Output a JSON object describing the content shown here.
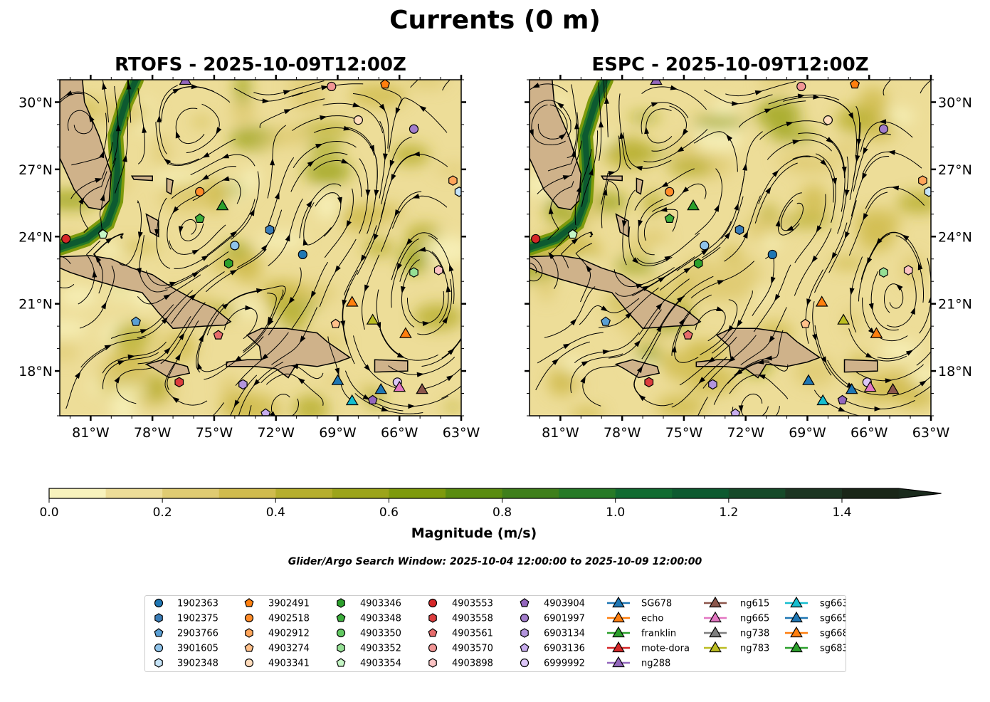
{
  "title": "Currents (0 m)",
  "panels": [
    {
      "title": "RTOFS - 2025-10-09T12:00Z",
      "lat_axis_side": "left"
    },
    {
      "title": "ESPC - 2025-10-09T12:00Z",
      "lat_axis_side": "right"
    }
  ],
  "axes": {
    "lon_range": [
      -82.5,
      -63
    ],
    "lat_range": [
      16,
      31
    ],
    "lon_ticks": [
      {
        "value": -81,
        "label": "81°W"
      },
      {
        "value": -78,
        "label": "78°W"
      },
      {
        "value": -75,
        "label": "75°W"
      },
      {
        "value": -72,
        "label": "72°W"
      },
      {
        "value": -69,
        "label": "69°W"
      },
      {
        "value": -66,
        "label": "66°W"
      },
      {
        "value": -63,
        "label": "63°W"
      }
    ],
    "lat_ticks": [
      {
        "value": 18,
        "label": "18°N"
      },
      {
        "value": 21,
        "label": "21°N"
      },
      {
        "value": 24,
        "label": "24°N"
      },
      {
        "value": 27,
        "label": "27°N"
      },
      {
        "value": 30,
        "label": "30°N"
      }
    ]
  },
  "colorbar": {
    "label": "Magnitude (m/s)",
    "min": 0,
    "max": 1.5,
    "extend": "max",
    "colors": [
      "#f8f3bd",
      "#eddd98",
      "#dfcb72",
      "#d0bb4e",
      "#b6ae2d",
      "#9ca41a",
      "#7e9a0c",
      "#5a8c10",
      "#3f7f1b",
      "#277a27",
      "#116b31",
      "#0d5a30",
      "#164a29",
      "#1c3522",
      "#1a2618"
    ],
    "extend_color": "#1a2a1c",
    "ticks": [
      {
        "value": 0.0,
        "label": "0.0"
      },
      {
        "value": 0.2,
        "label": "0.2"
      },
      {
        "value": 0.4,
        "label": "0.4"
      },
      {
        "value": 0.6,
        "label": "0.6"
      },
      {
        "value": 0.8,
        "label": "0.8"
      },
      {
        "value": 1.0,
        "label": "1.0"
      },
      {
        "value": 1.2,
        "label": "1.2"
      },
      {
        "value": 1.4,
        "label": "1.4"
      }
    ]
  },
  "search_window": "Glider/Argo Search Window: 2025-10-04 12:00:00 to 2025-10-09 12:00:00",
  "land_color": "#cfb28a",
  "platforms": [
    {
      "label": "1902363",
      "shape": "circle",
      "color": "#1f77b4",
      "lon": -70.7,
      "lat": 23.2
    },
    {
      "label": "1902375",
      "shape": "hexagon",
      "color": "#3a7db8",
      "lon": -72.3,
      "lat": 24.3
    },
    {
      "label": "2903766",
      "shape": "pentagon",
      "color": "#5a9fd4",
      "lon": -78.8,
      "lat": 20.2
    },
    {
      "label": "3901605",
      "shape": "circle",
      "color": "#8fc3ea",
      "lon": -74.0,
      "lat": 23.6
    },
    {
      "label": "3902348",
      "shape": "hexagon",
      "color": "#c6e4f8",
      "lon": -63.1,
      "lat": 26.0
    },
    {
      "label": "3902491",
      "shape": "pentagon",
      "color": "#ff7f0e",
      "lon": -66.7,
      "lat": 30.8
    },
    {
      "label": "4902518",
      "shape": "circle",
      "color": "#ff8c2a",
      "lon": -75.7,
      "lat": 26.0
    },
    {
      "label": "4902912",
      "shape": "hexagon",
      "color": "#ffa55a",
      "lon": -63.4,
      "lat": 26.5
    },
    {
      "label": "4903274",
      "shape": "pentagon",
      "color": "#ffc08a",
      "lon": -69.1,
      "lat": 20.1
    },
    {
      "label": "4903341",
      "shape": "circle",
      "color": "#ffdcbc",
      "lon": -68.0,
      "lat": 29.2
    },
    {
      "label": "4903346",
      "shape": "hexagon",
      "color": "#2ca02c",
      "lon": -74.3,
      "lat": 22.8
    },
    {
      "label": "4903348",
      "shape": "pentagon",
      "color": "#3cae3c",
      "lon": -75.7,
      "lat": 24.8
    },
    {
      "label": "4903350",
      "shape": "circle",
      "color": "#62c962",
      "lon": null,
      "lat": null
    },
    {
      "label": "4903352",
      "shape": "hexagon",
      "color": "#95e095",
      "lon": -65.3,
      "lat": 22.4
    },
    {
      "label": "4903354",
      "shape": "pentagon",
      "color": "#c5f5c5",
      "lon": -80.4,
      "lat": 24.1
    },
    {
      "label": "4903553",
      "shape": "circle",
      "color": "#d62728",
      "lon": -82.2,
      "lat": 23.9
    },
    {
      "label": "4903558",
      "shape": "hexagon",
      "color": "#dc3d3e",
      "lon": -76.7,
      "lat": 17.5
    },
    {
      "label": "4903561",
      "shape": "pentagon",
      "color": "#e66b6b",
      "lon": -74.8,
      "lat": 19.6
    },
    {
      "label": "4903570",
      "shape": "circle",
      "color": "#f19595",
      "lon": -69.3,
      "lat": 30.7
    },
    {
      "label": "4903898",
      "shape": "hexagon",
      "color": "#fbc3c3",
      "lon": -64.1,
      "lat": 22.5
    },
    {
      "label": "4903904",
      "shape": "pentagon",
      "color": "#9467bd",
      "lon": -67.3,
      "lat": 16.7
    },
    {
      "label": "6901997",
      "shape": "circle",
      "color": "#a27dcb",
      "lon": -65.3,
      "lat": 28.8
    },
    {
      "label": "6903134",
      "shape": "hexagon",
      "color": "#b294dc",
      "lon": -73.6,
      "lat": 17.4
    },
    {
      "label": "6903136",
      "shape": "pentagon",
      "color": "#c7aced",
      "lon": -72.5,
      "lat": 16.1
    },
    {
      "label": "6999992",
      "shape": "circle",
      "color": "#dcc6f7",
      "lon": -66.1,
      "lat": 17.5
    },
    {
      "label": "SG678",
      "shape": "triangle",
      "color": "#1f77b4",
      "lon": -69.0,
      "lat": 17.6
    },
    {
      "label": "echo",
      "shape": "triangle",
      "color": "#ff7f0e",
      "lon": -68.3,
      "lat": 21.1
    },
    {
      "label": "franklin",
      "shape": "triangle",
      "color": "#2ca02c",
      "lon": -74.6,
      "lat": 25.4
    },
    {
      "label": "mote-dora",
      "shape": "triangle",
      "color": "#d62728",
      "lon": null,
      "lat": null
    },
    {
      "label": "ng288",
      "shape": "triangle",
      "color": "#9467bd",
      "lon": -76.4,
      "lat": 31.0
    },
    {
      "label": "ng615",
      "shape": "triangle",
      "color": "#8c564b",
      "lon": -64.9,
      "lat": 17.2
    },
    {
      "label": "ng665",
      "shape": "triangle",
      "color": "#e377c2",
      "lon": -66.0,
      "lat": 17.3
    },
    {
      "label": "ng738",
      "shape": "triangle",
      "color": "#7f7f7f",
      "lon": null,
      "lat": null
    },
    {
      "label": "ng783",
      "shape": "triangle",
      "color": "#bcbd22",
      "lon": -67.3,
      "lat": 20.3
    },
    {
      "label": "sg663",
      "shape": "triangle",
      "color": "#17becf",
      "lon": -68.3,
      "lat": 16.7
    },
    {
      "label": "sg665",
      "shape": "triangle",
      "color": "#1f77b4",
      "lon": -66.9,
      "lat": 17.2
    },
    {
      "label": "sg668",
      "shape": "triangle",
      "color": "#ff7f0e",
      "lon": -65.7,
      "lat": 19.7
    },
    {
      "label": "sg683",
      "shape": "triangle",
      "color": "#2ca02c",
      "lon": null,
      "lat": null
    }
  ]
}
